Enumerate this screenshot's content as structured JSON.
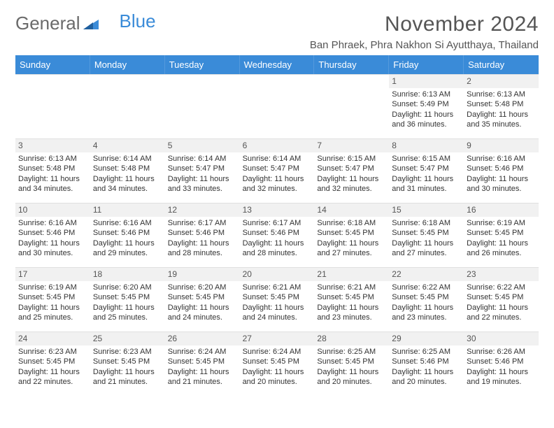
{
  "brand": {
    "word1": "General",
    "word2": "Blue"
  },
  "colors": {
    "brand_blue": "#3a8bd8",
    "text_gray": "#555555",
    "header_row_bg": "#f1f1f1",
    "grid_border": "#e0e0e0",
    "white": "#ffffff"
  },
  "title": "November 2024",
  "location": "Ban Phraek, Phra Nakhon Si Ayutthaya, Thailand",
  "weekdays": [
    "Sunday",
    "Monday",
    "Tuesday",
    "Wednesday",
    "Thursday",
    "Friday",
    "Saturday"
  ],
  "layout": {
    "first_weekday_index": 5,
    "days_in_month": 30,
    "columns": 7,
    "rows": 6
  },
  "days": [
    {
      "n": 1,
      "sunrise": "6:13 AM",
      "sunset": "5:49 PM",
      "daylight": "11 hours and 36 minutes."
    },
    {
      "n": 2,
      "sunrise": "6:13 AM",
      "sunset": "5:48 PM",
      "daylight": "11 hours and 35 minutes."
    },
    {
      "n": 3,
      "sunrise": "6:13 AM",
      "sunset": "5:48 PM",
      "daylight": "11 hours and 34 minutes."
    },
    {
      "n": 4,
      "sunrise": "6:14 AM",
      "sunset": "5:48 PM",
      "daylight": "11 hours and 34 minutes."
    },
    {
      "n": 5,
      "sunrise": "6:14 AM",
      "sunset": "5:47 PM",
      "daylight": "11 hours and 33 minutes."
    },
    {
      "n": 6,
      "sunrise": "6:14 AM",
      "sunset": "5:47 PM",
      "daylight": "11 hours and 32 minutes."
    },
    {
      "n": 7,
      "sunrise": "6:15 AM",
      "sunset": "5:47 PM",
      "daylight": "11 hours and 32 minutes."
    },
    {
      "n": 8,
      "sunrise": "6:15 AM",
      "sunset": "5:47 PM",
      "daylight": "11 hours and 31 minutes."
    },
    {
      "n": 9,
      "sunrise": "6:16 AM",
      "sunset": "5:46 PM",
      "daylight": "11 hours and 30 minutes."
    },
    {
      "n": 10,
      "sunrise": "6:16 AM",
      "sunset": "5:46 PM",
      "daylight": "11 hours and 30 minutes."
    },
    {
      "n": 11,
      "sunrise": "6:16 AM",
      "sunset": "5:46 PM",
      "daylight": "11 hours and 29 minutes."
    },
    {
      "n": 12,
      "sunrise": "6:17 AM",
      "sunset": "5:46 PM",
      "daylight": "11 hours and 28 minutes."
    },
    {
      "n": 13,
      "sunrise": "6:17 AM",
      "sunset": "5:46 PM",
      "daylight": "11 hours and 28 minutes."
    },
    {
      "n": 14,
      "sunrise": "6:18 AM",
      "sunset": "5:45 PM",
      "daylight": "11 hours and 27 minutes."
    },
    {
      "n": 15,
      "sunrise": "6:18 AM",
      "sunset": "5:45 PM",
      "daylight": "11 hours and 27 minutes."
    },
    {
      "n": 16,
      "sunrise": "6:19 AM",
      "sunset": "5:45 PM",
      "daylight": "11 hours and 26 minutes."
    },
    {
      "n": 17,
      "sunrise": "6:19 AM",
      "sunset": "5:45 PM",
      "daylight": "11 hours and 25 minutes."
    },
    {
      "n": 18,
      "sunrise": "6:20 AM",
      "sunset": "5:45 PM",
      "daylight": "11 hours and 25 minutes."
    },
    {
      "n": 19,
      "sunrise": "6:20 AM",
      "sunset": "5:45 PM",
      "daylight": "11 hours and 24 minutes."
    },
    {
      "n": 20,
      "sunrise": "6:21 AM",
      "sunset": "5:45 PM",
      "daylight": "11 hours and 24 minutes."
    },
    {
      "n": 21,
      "sunrise": "6:21 AM",
      "sunset": "5:45 PM",
      "daylight": "11 hours and 23 minutes."
    },
    {
      "n": 22,
      "sunrise": "6:22 AM",
      "sunset": "5:45 PM",
      "daylight": "11 hours and 23 minutes."
    },
    {
      "n": 23,
      "sunrise": "6:22 AM",
      "sunset": "5:45 PM",
      "daylight": "11 hours and 22 minutes."
    },
    {
      "n": 24,
      "sunrise": "6:23 AM",
      "sunset": "5:45 PM",
      "daylight": "11 hours and 22 minutes."
    },
    {
      "n": 25,
      "sunrise": "6:23 AM",
      "sunset": "5:45 PM",
      "daylight": "11 hours and 21 minutes."
    },
    {
      "n": 26,
      "sunrise": "6:24 AM",
      "sunset": "5:45 PM",
      "daylight": "11 hours and 21 minutes."
    },
    {
      "n": 27,
      "sunrise": "6:24 AM",
      "sunset": "5:45 PM",
      "daylight": "11 hours and 20 minutes."
    },
    {
      "n": 28,
      "sunrise": "6:25 AM",
      "sunset": "5:45 PM",
      "daylight": "11 hours and 20 minutes."
    },
    {
      "n": 29,
      "sunrise": "6:25 AM",
      "sunset": "5:46 PM",
      "daylight": "11 hours and 20 minutes."
    },
    {
      "n": 30,
      "sunrise": "6:26 AM",
      "sunset": "5:46 PM",
      "daylight": "11 hours and 19 minutes."
    }
  ],
  "labels": {
    "sunrise": "Sunrise:",
    "sunset": "Sunset:",
    "daylight": "Daylight:"
  },
  "typography": {
    "title_fontsize": 30,
    "location_fontsize": 15,
    "weekday_fontsize": 13,
    "cell_fontsize": 11,
    "logo_fontsize": 26
  }
}
